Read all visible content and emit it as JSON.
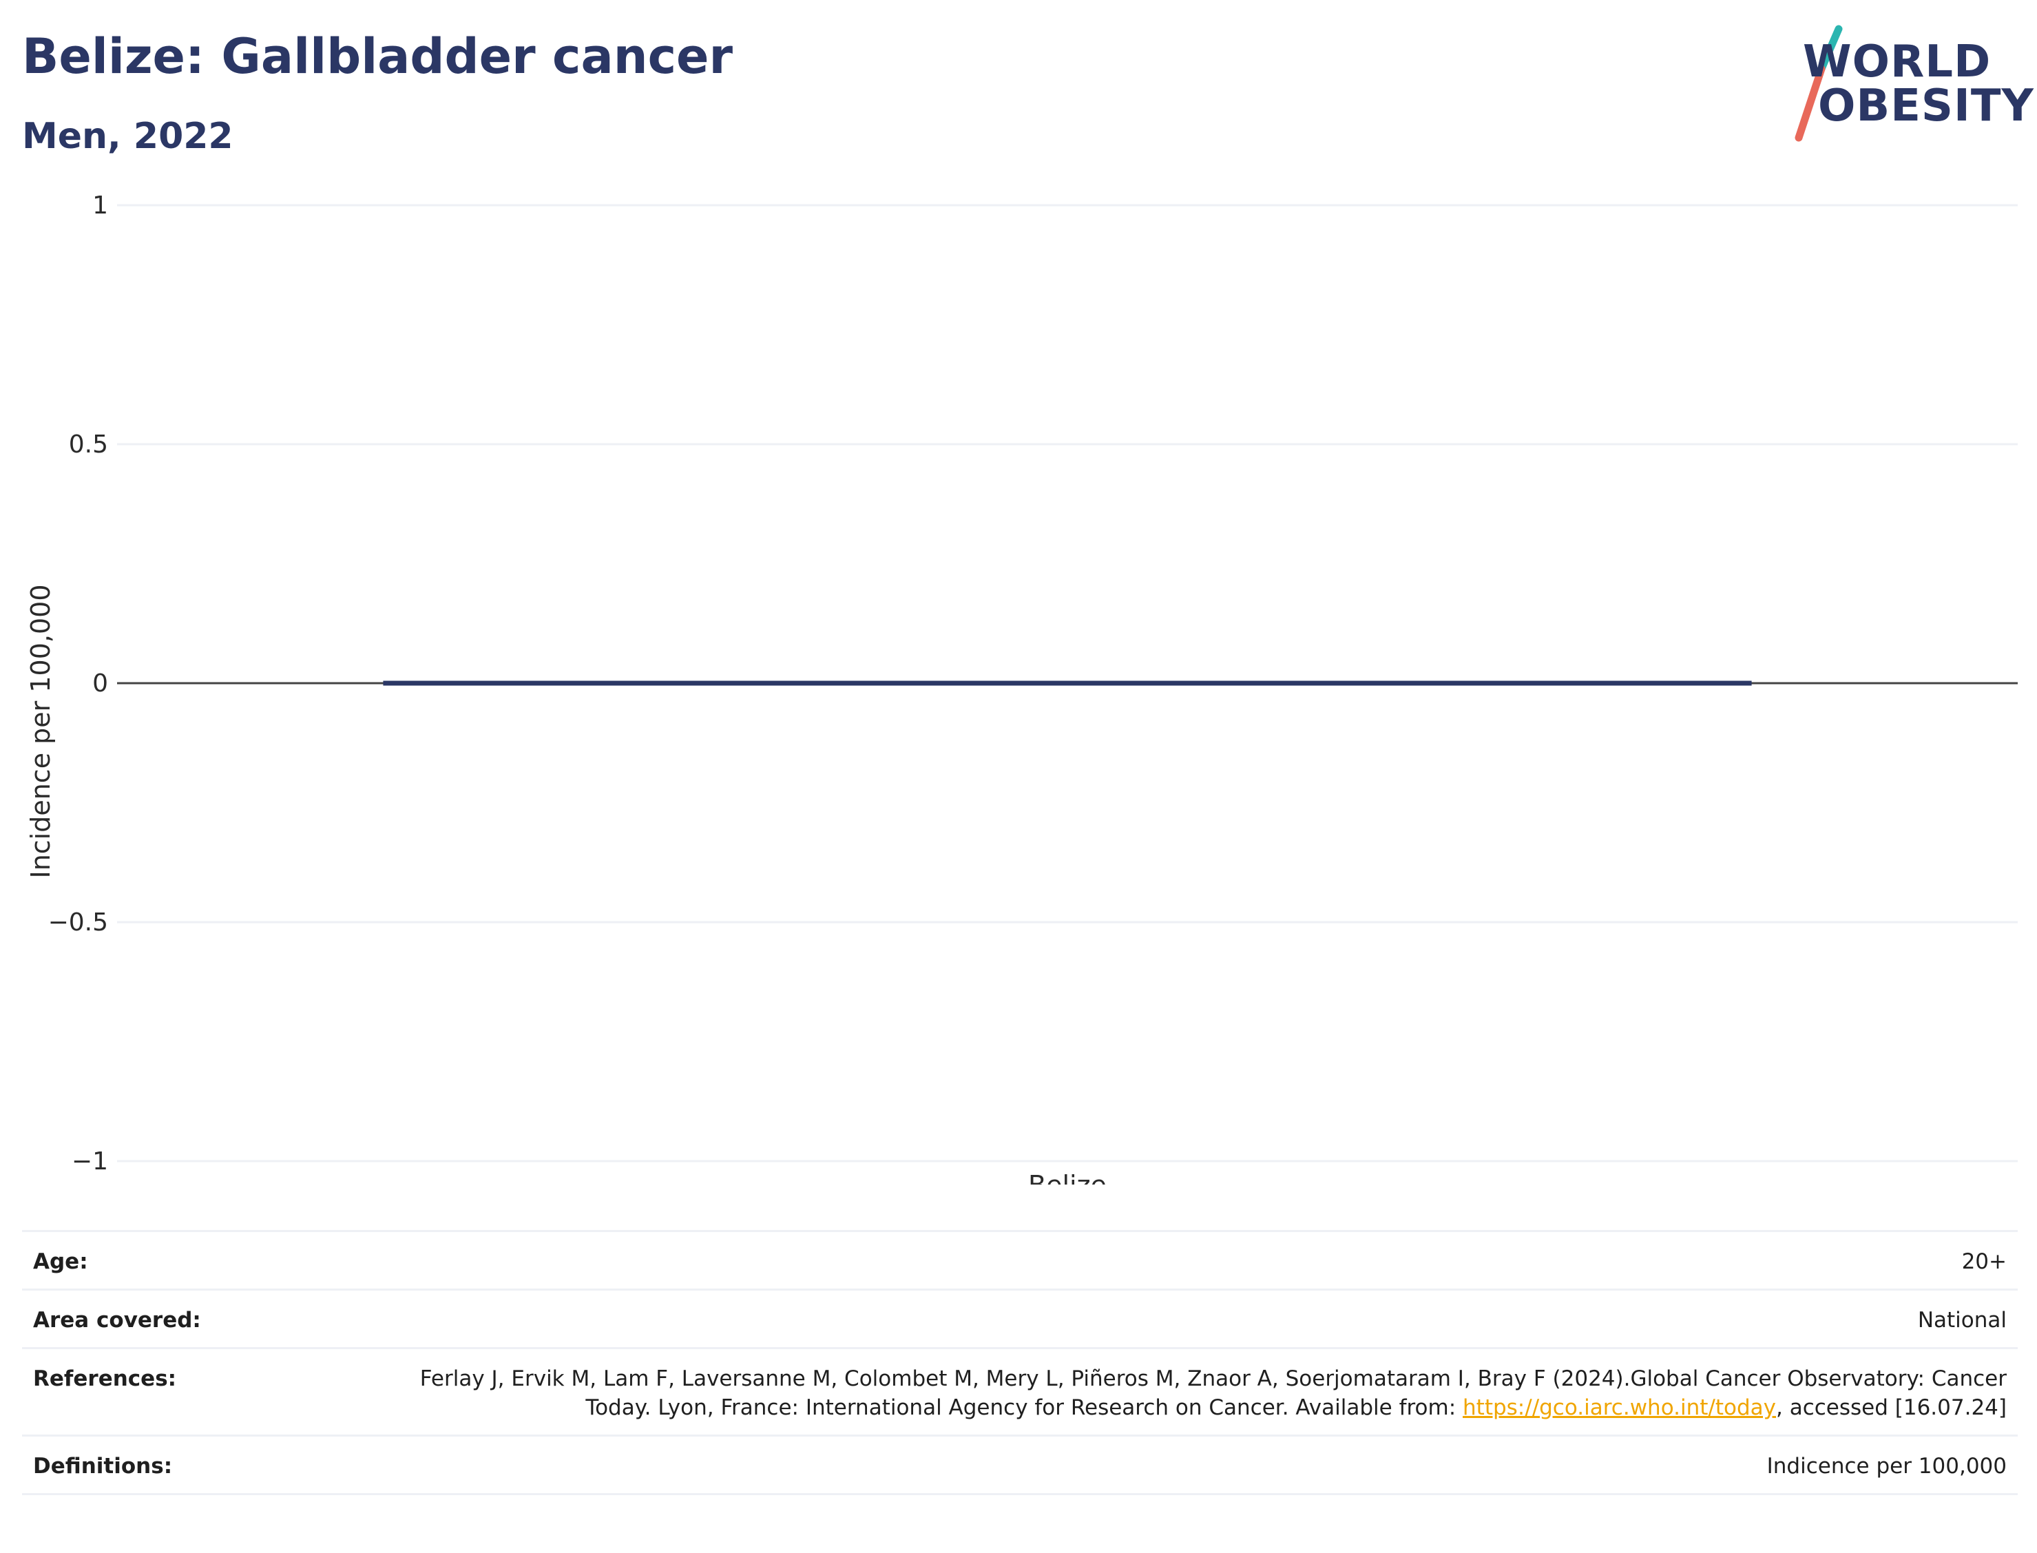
{
  "header": {
    "title": "Belize: Gallbladder cancer",
    "subtitle": "Men, 2022"
  },
  "logo": {
    "line1": "WORLD",
    "line2": "OBESITY",
    "accent_teal": "#2bb5b0",
    "accent_coral": "#e8695a"
  },
  "colors": {
    "title": "#2b3765",
    "bar": "#2b3765",
    "gridline": "#eef0f5",
    "zeroline": "#444444",
    "link": "#f0a500"
  },
  "chart_data": {
    "type": "bar",
    "categories": [
      "Belize"
    ],
    "values": [
      0
    ],
    "xlabel": "",
    "ylabel": "Incidence per 100,000",
    "ylim": [
      -1,
      1
    ],
    "yticks": [
      1,
      0.5,
      0,
      -0.5,
      -1
    ],
    "ytick_labels": [
      "1",
      "0.5",
      "0",
      "−0.5",
      "−1"
    ],
    "grid": true,
    "legend": "none"
  },
  "meta": {
    "age": {
      "label": "Age:",
      "value": "20+"
    },
    "area": {
      "label": "Area covered:",
      "value": "National"
    },
    "references": {
      "label": "References:",
      "text_before": "Ferlay J, Ervik M, Lam F, Laversanne M, Colombet M, Mery L, Piñeros M, Znaor A, Soerjomataram I, Bray F (2024).Global Cancer Observatory: Cancer Today. Lyon, France: International Agency for Research on Cancer. Available from: ",
      "link": "https://gco.iarc.who.int/today",
      "text_after": ", accessed [16.07.24]"
    },
    "definitions": {
      "label": "Definitions:",
      "value": "Indicence per 100,000"
    }
  }
}
